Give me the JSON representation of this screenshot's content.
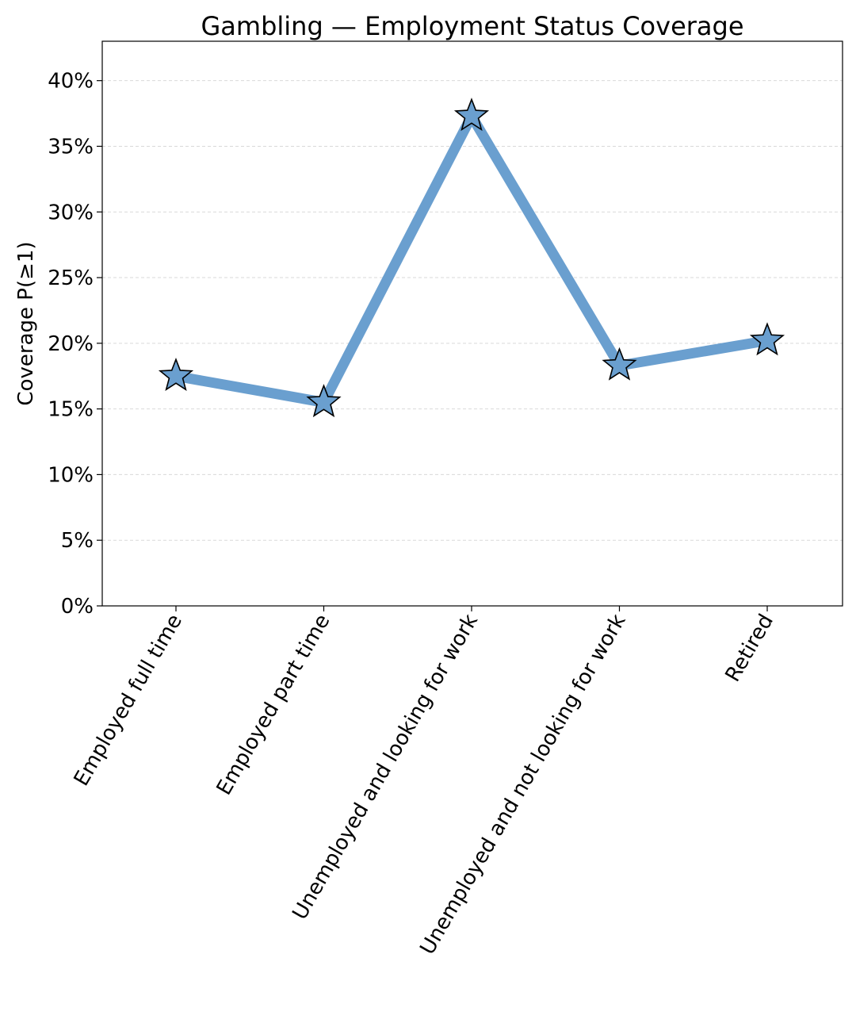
{
  "chart_data": {
    "type": "line",
    "title": "Gambling — Employment Status Coverage",
    "xlabel": "",
    "ylabel": "Coverage P(≥1)",
    "categories": [
      "Employed full time",
      "Employed part time",
      "Unemployed and looking for work",
      "Unemployed and not looking for work",
      "Retired"
    ],
    "series": [
      {
        "values": [
          0.175,
          0.155,
          0.373,
          0.183,
          0.202
        ]
      }
    ],
    "ylim": [
      0,
      0.43
    ],
    "yticks": [
      0,
      0.05,
      0.1,
      0.15,
      0.2,
      0.25,
      0.3,
      0.35,
      0.4
    ],
    "ytick_labels": [
      "0%",
      "5%",
      "10%",
      "15%",
      "20%",
      "25%",
      "30%",
      "35%",
      "40%"
    ],
    "grid": "y",
    "line_color": "#6a9fcf",
    "marker": "star",
    "marker_edge_color": "#000000"
  }
}
